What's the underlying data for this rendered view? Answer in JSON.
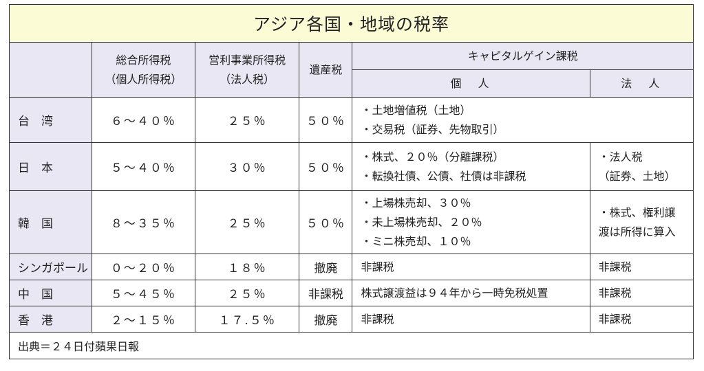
{
  "title": "アジア各国・地域の税率",
  "headers": {
    "col1_line1": "総合所得税",
    "col1_line2": "（個人所得税）",
    "col2_line1": "営利事業所得税",
    "col2_line2": "（法人税）",
    "col3": "遺産税",
    "capital_gains": "キャピタルゲイン課税",
    "individual": "個　人",
    "corporate": "法　人"
  },
  "rows": [
    {
      "region": "台　湾",
      "income_tax": "６～４０％",
      "corp_tax": "２５％",
      "estate_tax": "５０％",
      "cg_individual": [
        "・土地増値税（土地）",
        "・交易税（証券、先物取引）"
      ],
      "cg_corporate": []
    },
    {
      "region": "日　本",
      "income_tax": "５～４０％",
      "corp_tax": "３０％",
      "estate_tax": "５０％",
      "cg_individual": [
        "・株式、２０％（分離課税）",
        "・転換社債、公債、社債は非課税"
      ],
      "cg_corporate": [
        "・法人税",
        "（証券、土地）"
      ]
    },
    {
      "region": "韓　国",
      "income_tax": "８～３５％",
      "corp_tax": "２５％",
      "estate_tax": "５０％",
      "cg_individual": [
        "・上場株売却、３０％",
        "・未上場株売却、２０％",
        "・ミニ株売却、１０％"
      ],
      "cg_corporate": [
        "・株式、権利譲",
        "渡は所得に算入"
      ]
    },
    {
      "region": "シンガポール",
      "income_tax": "０～２０％",
      "corp_tax": "１８％",
      "estate_tax": "撤廃",
      "cg_individual": [
        "非課税"
      ],
      "cg_corporate": [
        "非課税"
      ]
    },
    {
      "region": "中　国",
      "income_tax": "５～４５％",
      "corp_tax": "２５％",
      "estate_tax": "非課税",
      "cg_individual": [
        "株式譲渡益は９４年から一時免税処置"
      ],
      "cg_corporate": [
        "非課税"
      ]
    },
    {
      "region": "香　港",
      "income_tax": "２～１５％",
      "corp_tax": "１７.５％",
      "estate_tax": "撤廃",
      "cg_individual": [
        "非課税"
      ],
      "cg_corporate": [
        "非課税"
      ]
    }
  ],
  "source": "出典＝２４日付蘋果日報"
}
